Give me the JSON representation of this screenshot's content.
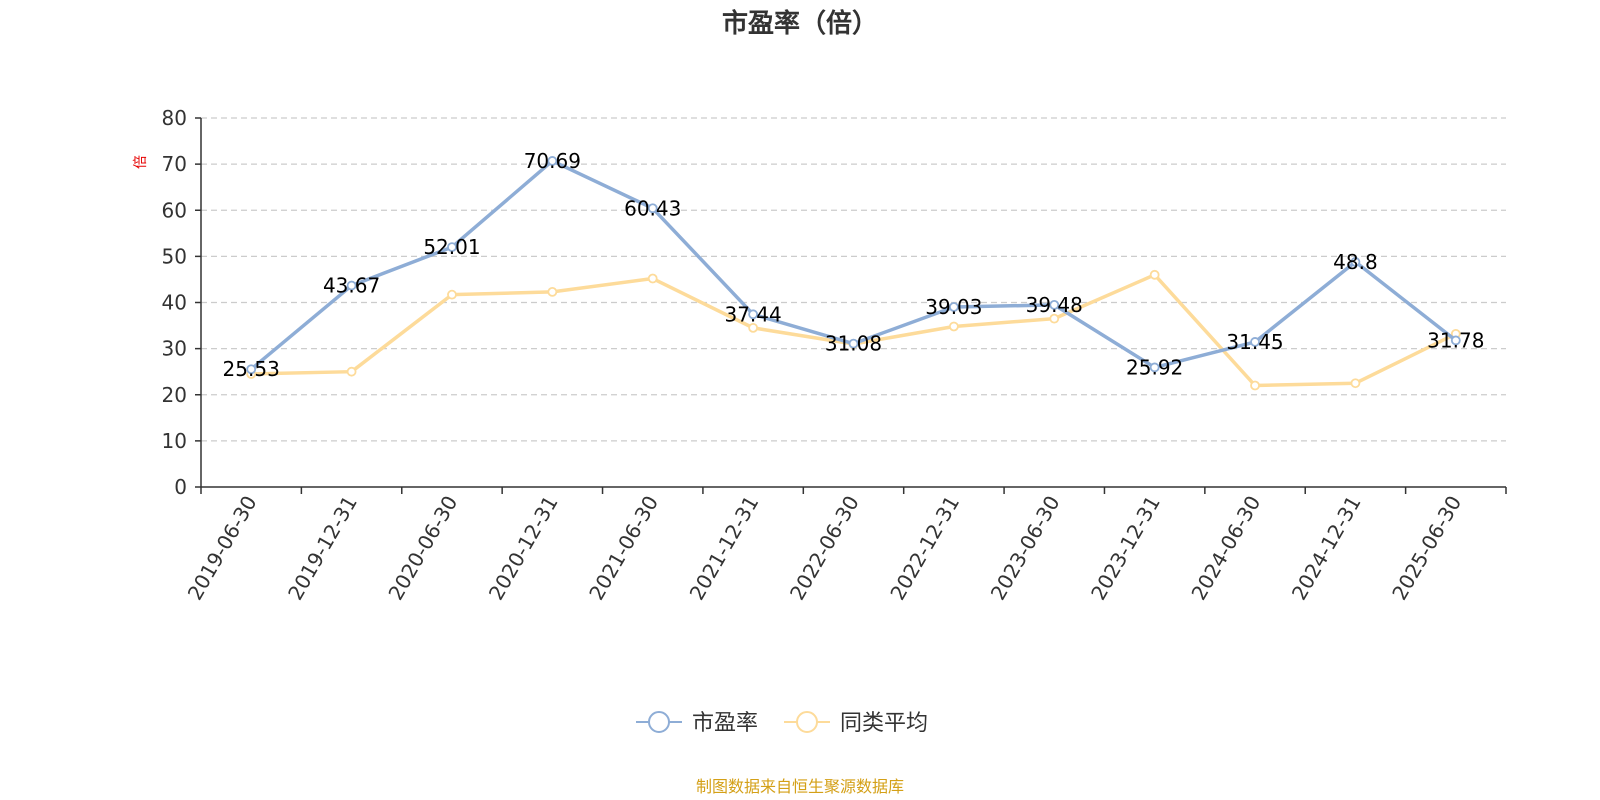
{
  "chart_data": {
    "type": "line",
    "title": "市盈率（倍）",
    "ylabel": "倍",
    "ylim": [
      0,
      80
    ],
    "yticks": [
      0,
      10,
      20,
      30,
      40,
      50,
      60,
      70,
      80
    ],
    "grid": true,
    "legend_position": "bottom-center",
    "categories": [
      "2019-06-30",
      "2019-12-31",
      "2020-06-30",
      "2020-12-31",
      "2021-06-30",
      "2021-12-31",
      "2022-06-30",
      "2022-12-31",
      "2023-06-30",
      "2023-12-31",
      "2024-06-30",
      "2024-12-31",
      "2025-06-30"
    ],
    "series": [
      {
        "name": "市盈率",
        "color": "#8eadd6",
        "values": [
          25.53,
          43.67,
          52.01,
          70.69,
          60.43,
          37.44,
          31.08,
          39.03,
          39.48,
          25.92,
          31.45,
          48.8,
          31.78
        ],
        "labels": [
          "25.53",
          "43.67",
          "52.01",
          "70.69",
          "60.43",
          "37.44",
          "31.08",
          "39.03",
          "39.48",
          "25.92",
          "31.45",
          "48.8",
          "31.78"
        ]
      },
      {
        "name": "同类平均",
        "color": "#fddb9a",
        "values": [
          24.5,
          25.0,
          41.7,
          42.3,
          45.2,
          34.5,
          31.0,
          34.8,
          36.5,
          46.0,
          22.0,
          22.5,
          33.2
        ]
      }
    ],
    "source": "制图数据来自恒生聚源数据库"
  },
  "colors": {
    "axis": "#333333",
    "grid": "#cccccc",
    "unit": "#e60000",
    "source": "#d4a017"
  }
}
